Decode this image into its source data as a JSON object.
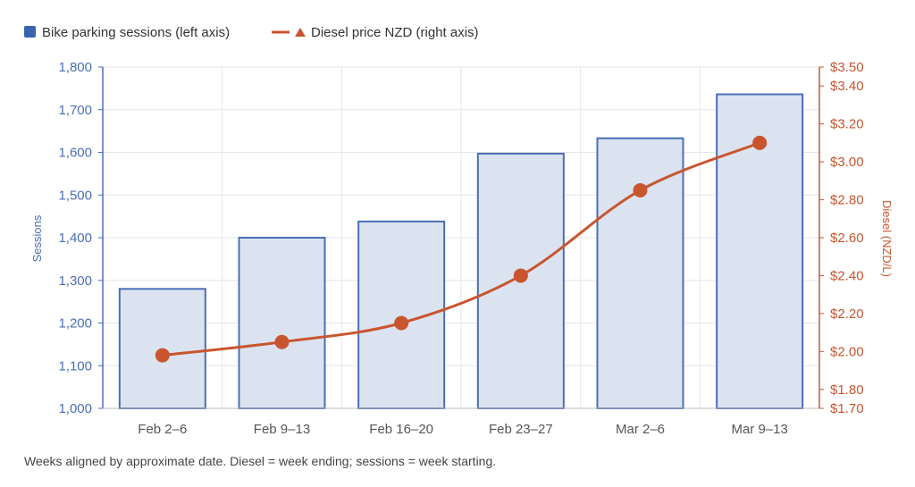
{
  "legend": {
    "bars_label": "Bike parking sessions (left axis)",
    "line_label": "Diesel price NZD (right axis)"
  },
  "footnote": "Weeks aligned by approximate date. Diesel = week ending; sessions = week starting.",
  "colors": {
    "bar_fill": "#dbe3f1",
    "bar_stroke": "#4a6fb5",
    "line": "#c9552e",
    "grid": "#e6e6e6"
  },
  "chart_data": {
    "type": "bar+line",
    "categories": [
      "Feb 2–6",
      "Feb 9–13",
      "Feb 16–20",
      "Feb 23–27",
      "Mar 2–6",
      "Mar 9–13"
    ],
    "series": [
      {
        "name": "Bike parking sessions (left axis)",
        "type": "bar",
        "axis": "left",
        "values": [
          1280,
          1400,
          1438,
          1597,
          1633,
          1736
        ]
      },
      {
        "name": "Diesel price NZD (right axis)",
        "type": "line",
        "axis": "right",
        "values": [
          1.98,
          2.05,
          2.15,
          2.4,
          2.85,
          3.1
        ]
      }
    ],
    "y_left": {
      "label": "Sessions",
      "range": [
        1000,
        1800
      ],
      "ticks": [
        1000,
        1100,
        1200,
        1300,
        1400,
        1500,
        1600,
        1700,
        1800
      ],
      "tick_labels": [
        "1,000",
        "1,100",
        "1,200",
        "1,300",
        "1,400",
        "1,500",
        "1,600",
        "1,700",
        "1,800"
      ]
    },
    "y_right": {
      "label": "Diesel (NZD/L)",
      "range": [
        1.7,
        3.5
      ],
      "ticks": [
        1.7,
        1.8,
        2.0,
        2.2,
        2.4,
        2.6,
        2.8,
        3.0,
        3.2,
        3.4,
        3.5
      ],
      "tick_labels": [
        "$1.70",
        "$1.80",
        "$2.00",
        "$2.20",
        "$2.40",
        "$2.60",
        "$2.80",
        "$3.00",
        "$3.20",
        "$3.40",
        "$3.50"
      ]
    },
    "grid": true,
    "legend_position": "top-left"
  }
}
